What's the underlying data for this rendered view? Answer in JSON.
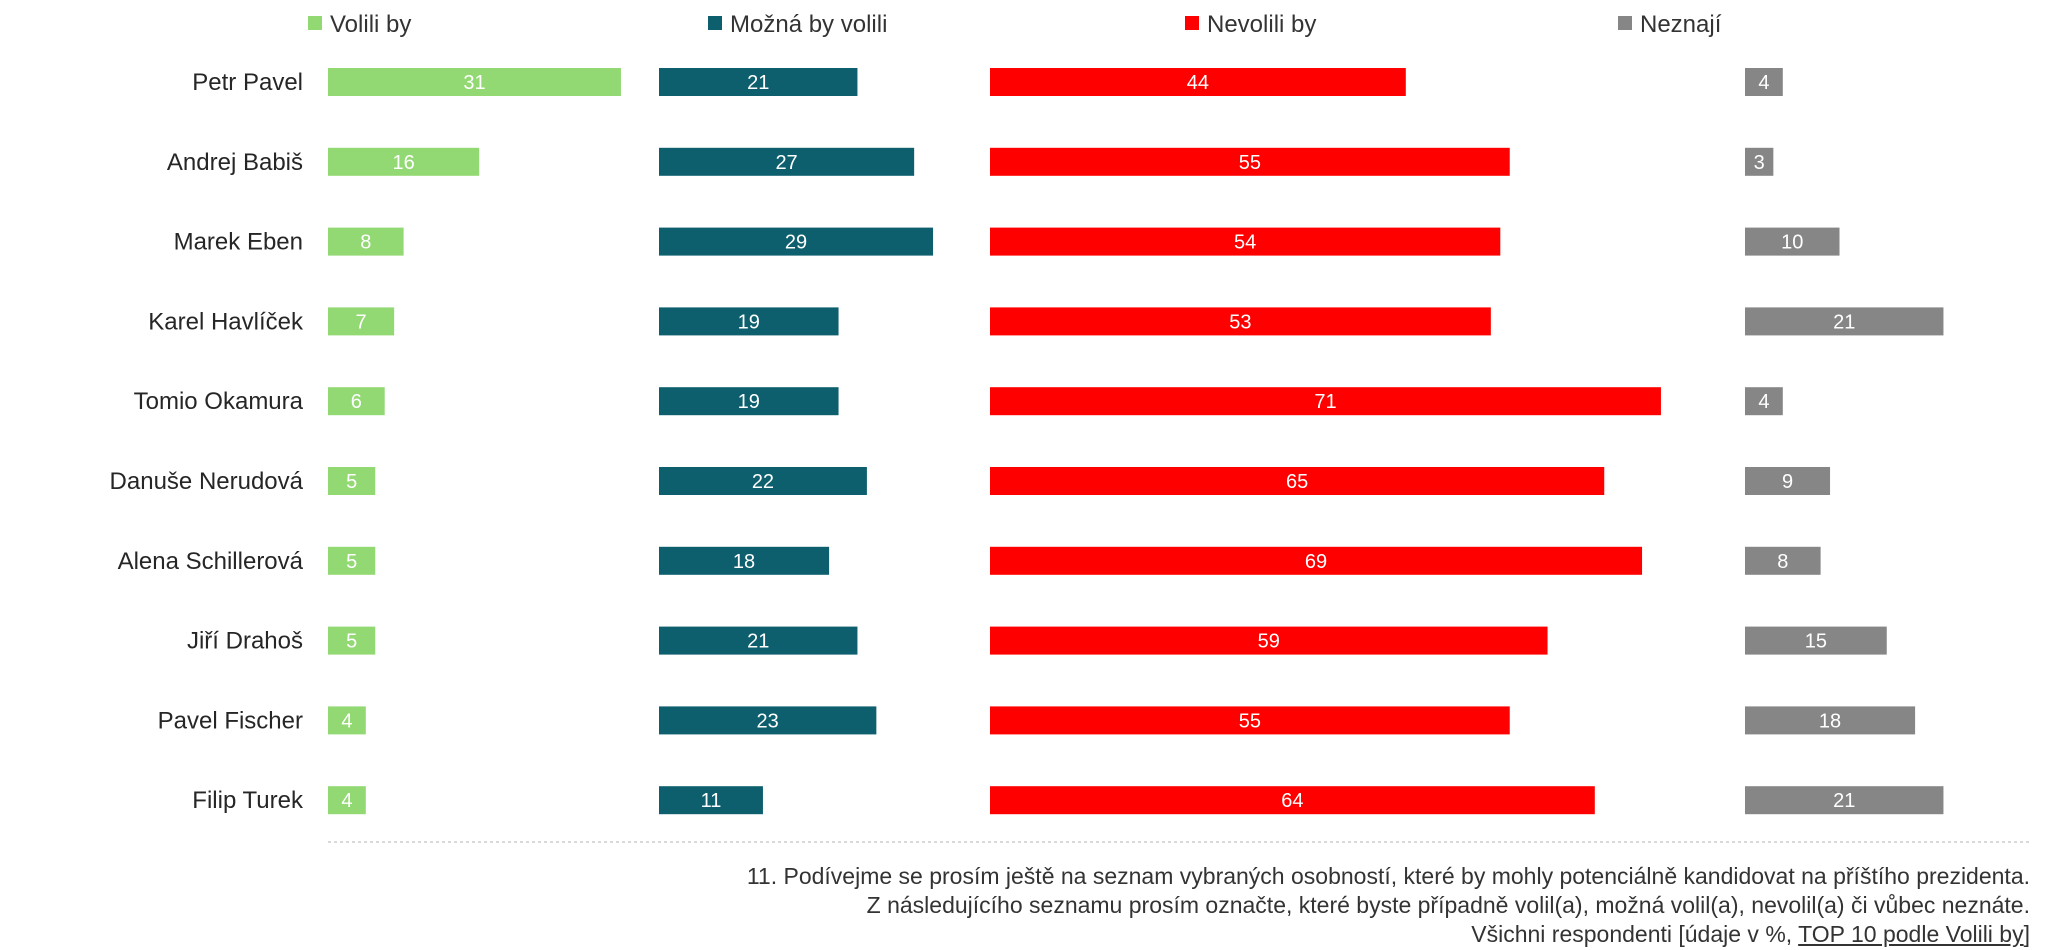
{
  "chart_data": {
    "type": "bar",
    "orientation": "horizontal",
    "categories": [
      "Petr Pavel",
      "Andrej Babiš",
      "Marek Eben",
      "Karel Havlíček",
      "Tomio Okamura",
      "Danuše Nerudová",
      "Alena Schillerová",
      "Jiří Drahoš",
      "Pavel Fischer",
      "Filip Turek"
    ],
    "series": [
      {
        "name": "Volili by",
        "color": "#92d973",
        "values": [
          31,
          16,
          8,
          7,
          6,
          5,
          5,
          5,
          4,
          4
        ]
      },
      {
        "name": "Možná by volili",
        "color": "#0d5f6e",
        "values": [
          21,
          27,
          29,
          19,
          19,
          22,
          18,
          21,
          23,
          11
        ]
      },
      {
        "name": "Nevolili by",
        "color": "#ff0000",
        "values": [
          44,
          55,
          54,
          53,
          71,
          65,
          69,
          59,
          55,
          64
        ]
      },
      {
        "name": "Neznají",
        "color": "#868686",
        "values": [
          4,
          3,
          10,
          21,
          4,
          9,
          8,
          15,
          18,
          21
        ]
      }
    ],
    "legend_position": "top",
    "grid": false
  },
  "footnote": {
    "line1": "11. Podívejme se prosím ještě na seznam vybraných osobností, které by mohly potenciálně kandidovat na příštího prezidenta.",
    "line2": "Z následujícího seznamu prosím označte, které byste případně volil(a), možná volil(a), nevolil(a) či vůbec neznáte.",
    "line3_prefix": "Všichni respondenti [údaje v %, ",
    "line3_underlined": "TOP 10 podle Volili by",
    "line3_suffix": "]"
  }
}
